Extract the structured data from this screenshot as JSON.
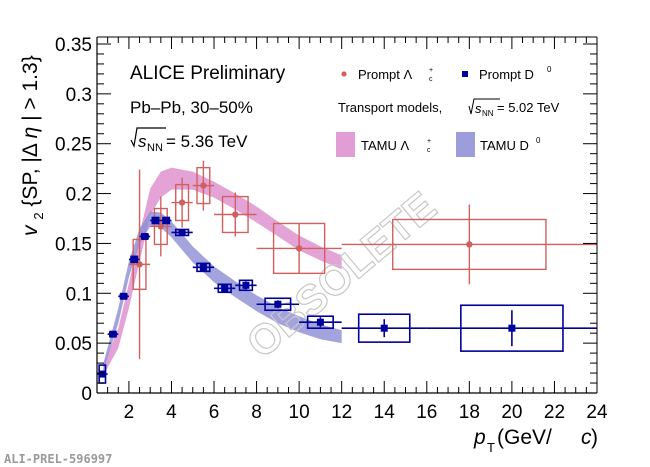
{
  "chart_data": {
    "type": "scatter",
    "title": "",
    "xlabel": "p_T (GeV/c)",
    "xlabel_parts": {
      "main": "p",
      "sub": "T",
      "rest": " (GeV/",
      "italic": "c",
      "close": ")"
    },
    "ylabel": "v_2 {SP, |Δη| > 1.3}",
    "ylabel_parts": {
      "main": "v",
      "sub": "2",
      "rest": " {SP, |Δ",
      "eta": "η",
      "close": "| > 1.3}"
    },
    "xlim": [
      0.5,
      24
    ],
    "ylim": [
      0,
      0.35
    ],
    "xticks": [
      2,
      4,
      6,
      8,
      10,
      12,
      14,
      16,
      18,
      20,
      22,
      24
    ],
    "yticks": [
      0,
      0.05,
      0.1,
      0.15,
      0.2,
      0.25,
      0.3,
      0.35
    ],
    "ytick_labels": [
      "0",
      "0.05",
      "0.1",
      "0.15",
      "0.2",
      "0.25",
      "0.3",
      "0.35"
    ],
    "grid": false,
    "legend_placement": "top-right",
    "annotations": {
      "experiment": "ALICE Preliminary",
      "system": "Pb–Pb, 30–50%",
      "energy_prefix": "s",
      "energy_sub": "NN",
      "energy_value": " = 5.36 TeV",
      "model_text": "Transport models,",
      "model_energy_value": " = 5.02 TeV",
      "watermark": "OBSOLETE",
      "figure_id": "ALI-PREL-596997"
    },
    "legend": [
      {
        "label": "Prompt Λc+",
        "label_main": "Prompt Λ",
        "label_sub": "c",
        "label_sup": "+",
        "marker": "circle",
        "color": "#d0605e"
      },
      {
        "label": "Prompt D0",
        "label_main": "Prompt D",
        "label_sup": "0",
        "marker": "square",
        "color": "#00009a"
      },
      {
        "label": "TAMU Λc+",
        "label_main": "TAMU Λ",
        "label_sub": "c",
        "label_sup": "+",
        "marker": "band",
        "color": "#dd8ccc"
      },
      {
        "label": "TAMU D0",
        "label_main": "TAMU D",
        "label_sup": "0",
        "marker": "band",
        "color": "#8c8cd6"
      }
    ],
    "series": [
      {
        "name": "Prompt Λc+",
        "color": "#d0605e",
        "marker": "circle",
        "points": [
          {
            "x": 2.5,
            "xerr": 0.5,
            "y": 0.129,
            "yerr": 0.095,
            "xsys": 0.3,
            "ysys": 0.025
          },
          {
            "x": 3.5,
            "xerr": 0.5,
            "y": 0.167,
            "yerr": 0.03,
            "xsys": 0.3,
            "ysys": 0.018
          },
          {
            "x": 4.5,
            "xerr": 0.5,
            "y": 0.191,
            "yerr": 0.025,
            "xsys": 0.3,
            "ysys": 0.018
          },
          {
            "x": 5.5,
            "xerr": 0.5,
            "y": 0.208,
            "yerr": 0.025,
            "xsys": 0.3,
            "ysys": 0.018
          },
          {
            "x": 7.0,
            "xerr": 1.0,
            "y": 0.179,
            "yerr": 0.022,
            "xsys": 0.6,
            "ysys": 0.018
          },
          {
            "x": 10.0,
            "xerr": 2.0,
            "y": 0.145,
            "yerr": 0.025,
            "xsys": 1.2,
            "ysys": 0.025
          },
          {
            "x": 18.0,
            "xerr": 6.0,
            "y": 0.149,
            "yerr": 0.04,
            "xsys": 3.6,
            "ysys": 0.025
          }
        ]
      },
      {
        "name": "Prompt D0",
        "color": "#00009a",
        "marker": "square",
        "points": [
          {
            "x": 0.75,
            "xerr": 0.25,
            "y": 0.019,
            "yerr": 0.003,
            "xsys": 0.15,
            "ysys": 0.009
          },
          {
            "x": 1.25,
            "xerr": 0.25,
            "y": 0.059,
            "yerr": 0.002,
            "xsys": 0.15,
            "ysys": 0.002
          },
          {
            "x": 1.75,
            "xerr": 0.25,
            "y": 0.097,
            "yerr": 0.002,
            "xsys": 0.15,
            "ysys": 0.002
          },
          {
            "x": 2.25,
            "xerr": 0.25,
            "y": 0.134,
            "yerr": 0.003,
            "xsys": 0.15,
            "ysys": 0.003
          },
          {
            "x": 2.75,
            "xerr": 0.25,
            "y": 0.157,
            "yerr": 0.002,
            "xsys": 0.15,
            "ysys": 0.002
          },
          {
            "x": 3.25,
            "xerr": 0.25,
            "y": 0.173,
            "yerr": 0.003,
            "xsys": 0.15,
            "ysys": 0.003
          },
          {
            "x": 3.75,
            "xerr": 0.25,
            "y": 0.173,
            "yerr": 0.003,
            "xsys": 0.15,
            "ysys": 0.003
          },
          {
            "x": 4.5,
            "xerr": 0.5,
            "y": 0.161,
            "yerr": 0.002,
            "xsys": 0.3,
            "ysys": 0.003
          },
          {
            "x": 5.5,
            "xerr": 0.5,
            "y": 0.126,
            "yerr": 0.003,
            "xsys": 0.3,
            "ysys": 0.004
          },
          {
            "x": 6.5,
            "xerr": 0.5,
            "y": 0.105,
            "yerr": 0.003,
            "xsys": 0.3,
            "ysys": 0.004
          },
          {
            "x": 7.5,
            "xerr": 0.5,
            "y": 0.108,
            "yerr": 0.004,
            "xsys": 0.3,
            "ysys": 0.005
          },
          {
            "x": 9.0,
            "xerr": 1.0,
            "y": 0.089,
            "yerr": 0.004,
            "xsys": 0.6,
            "ysys": 0.006
          },
          {
            "x": 11.0,
            "xerr": 1.0,
            "y": 0.071,
            "yerr": 0.005,
            "xsys": 0.6,
            "ysys": 0.006
          },
          {
            "x": 14.0,
            "xerr": 2.0,
            "y": 0.065,
            "yerr": 0.009,
            "xsys": 1.2,
            "ysys": 0.014
          },
          {
            "x": 20.0,
            "xerr": 4.0,
            "y": 0.065,
            "yerr": 0.018,
            "xsys": 2.4,
            "ysys": 0.023
          }
        ]
      }
    ],
    "bands": [
      {
        "name": "TAMU Λc+",
        "color": "#dd8ccc",
        "x": [
          0.8,
          1.5,
          2.0,
          2.5,
          3.0,
          3.5,
          4.0,
          5.0,
          6.0,
          7.0,
          8.0,
          9.0,
          10.0,
          11.0,
          12.0
        ],
        "upper": [
          0.028,
          0.065,
          0.11,
          0.16,
          0.205,
          0.222,
          0.226,
          0.222,
          0.212,
          0.2,
          0.187,
          0.172,
          0.158,
          0.147,
          0.138
        ],
        "lower": [
          0.018,
          0.045,
          0.085,
          0.132,
          0.178,
          0.196,
          0.204,
          0.204,
          0.196,
          0.184,
          0.171,
          0.157,
          0.143,
          0.133,
          0.124
        ]
      },
      {
        "name": "TAMU D0",
        "color": "#8c8cd6",
        "x": [
          0.8,
          1.5,
          2.0,
          2.5,
          3.0,
          3.5,
          4.0,
          5.0,
          6.0,
          7.0,
          8.0,
          9.0,
          10.0,
          11.0,
          12.0
        ],
        "upper": [
          0.03,
          0.085,
          0.132,
          0.165,
          0.182,
          0.181,
          0.172,
          0.147,
          0.127,
          0.112,
          0.098,
          0.086,
          0.077,
          0.069,
          0.063
        ],
        "lower": [
          0.022,
          0.07,
          0.116,
          0.15,
          0.167,
          0.166,
          0.156,
          0.131,
          0.111,
          0.096,
          0.082,
          0.07,
          0.061,
          0.054,
          0.05
        ]
      }
    ]
  }
}
